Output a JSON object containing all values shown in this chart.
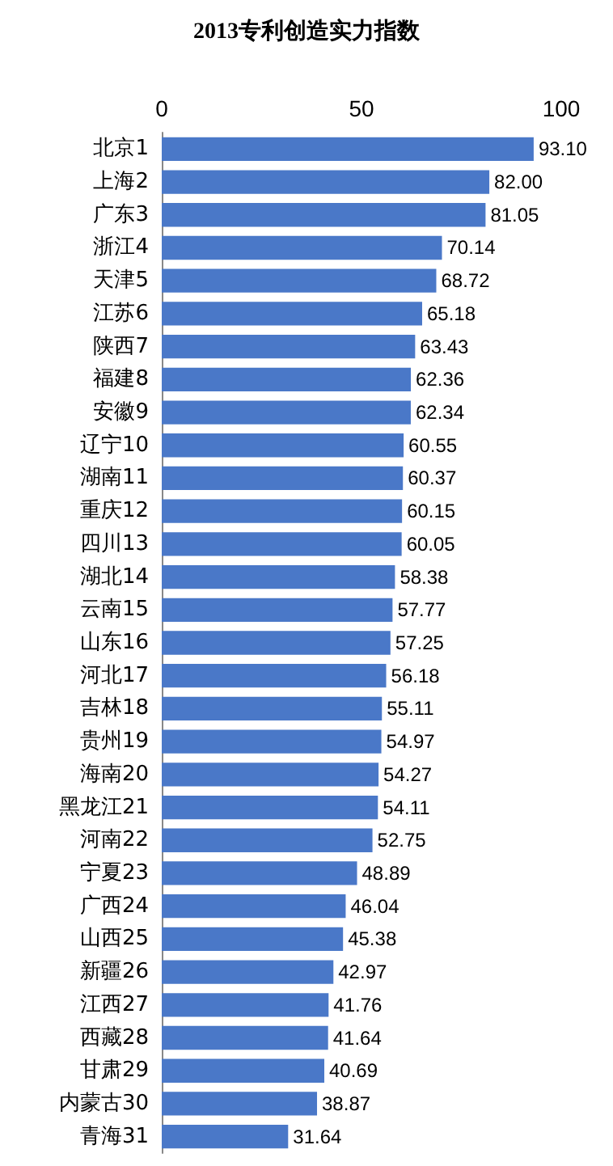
{
  "chart_data": {
    "type": "bar",
    "orientation": "horizontal",
    "title": "2013专利创造实力指数",
    "categories": [
      "北京1",
      "上海2",
      "广东3",
      "浙江4",
      "天津5",
      "江苏6",
      "陕西7",
      "福建8",
      "安徽9",
      "辽宁10",
      "湖南11",
      "重庆12",
      "四川13",
      "湖北14",
      "云南15",
      "山东16",
      "河北17",
      "吉林18",
      "贵州19",
      "海南20",
      "黑龙江21",
      "河南22",
      "宁夏23",
      "广西24",
      "山西25",
      "新疆26",
      "江西27",
      "西藏28",
      "甘肃29",
      "内蒙古30",
      "青海31"
    ],
    "values": [
      93.1,
      82,
      81.05,
      70.14,
      68.72,
      65.18,
      63.43,
      62.36,
      62.34,
      60.55,
      60.37,
      60.15,
      60.05,
      58.38,
      57.77,
      57.25,
      56.18,
      55.11,
      54.97,
      54.27,
      54.11,
      52.75,
      48.89,
      46.04,
      45.38,
      42.97,
      41.76,
      41.64,
      40.69,
      38.87,
      31.64
    ],
    "value_labels": [
      "93.10",
      "82.00",
      "81.05",
      "70.14",
      "68.72",
      "65.18",
      "63.43",
      "62.36",
      "62.34",
      "60.55",
      "60.37",
      "60.15",
      "60.05",
      "58.38",
      "57.77",
      "57.25",
      "56.18",
      "55.11",
      "54.97",
      "54.27",
      "54.11",
      "52.75",
      "48.89",
      "46.04",
      "45.38",
      "42.97",
      "41.76",
      "41.64",
      "40.69",
      "38.87",
      "31.64"
    ],
    "color": "#4a78c8",
    "xlim": [
      0,
      100
    ],
    "xticks": [
      0,
      50,
      100
    ],
    "grid": false
  }
}
